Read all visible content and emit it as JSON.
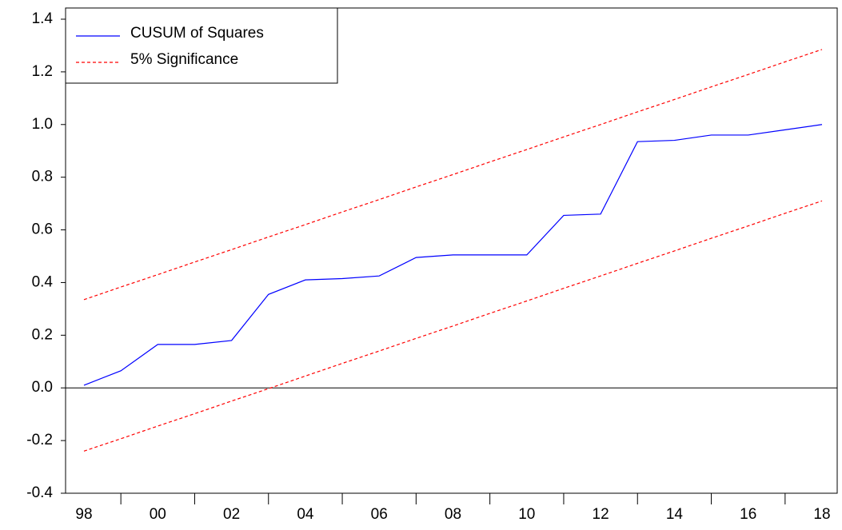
{
  "chart_data": {
    "type": "line",
    "categories": [
      "98",
      null,
      "00",
      null,
      "02",
      null,
      "04",
      null,
      "06",
      null,
      "08",
      null,
      "10",
      null,
      "12",
      null,
      "14",
      null,
      "16",
      null,
      "18"
    ],
    "series": [
      {
        "name": "CUSUM of Squares",
        "color": "#0000ff",
        "dash": false,
        "values": [
          0.01,
          0.065,
          0.165,
          0.165,
          0.18,
          0.355,
          0.41,
          0.415,
          0.425,
          0.495,
          0.505,
          0.505,
          0.505,
          0.655,
          0.66,
          0.935,
          0.94,
          0.96,
          0.96,
          0.98,
          1.0
        ]
      },
      {
        "name": "5% Significance",
        "color": "#ff0000",
        "dash": true,
        "values": [
          0.335,
          0.383,
          0.43,
          0.478,
          0.525,
          0.573,
          0.62,
          0.668,
          0.715,
          0.763,
          0.81,
          0.858,
          0.905,
          0.953,
          1.0,
          1.048,
          1.095,
          1.143,
          1.19,
          1.238,
          1.285
        ]
      },
      {
        "color": "#ff0000",
        "dash": true,
        "values": [
          -0.24,
          -0.193,
          -0.145,
          -0.098,
          -0.05,
          -0.003,
          0.045,
          0.093,
          0.14,
          0.188,
          0.235,
          0.283,
          0.33,
          0.378,
          0.425,
          0.473,
          0.52,
          0.568,
          0.615,
          0.663,
          0.71
        ]
      }
    ],
    "ylim": [
      -0.4,
      1.4
    ],
    "yticks": [
      -0.4,
      -0.2,
      {
        "value": 0,
        "label": "0.0"
      },
      0.2,
      0.4,
      0.6,
      0.8,
      {
        "value": 1,
        "label": "1.0"
      },
      1.2,
      1.4
    ],
    "grid": false,
    "legend": "upper left"
  }
}
